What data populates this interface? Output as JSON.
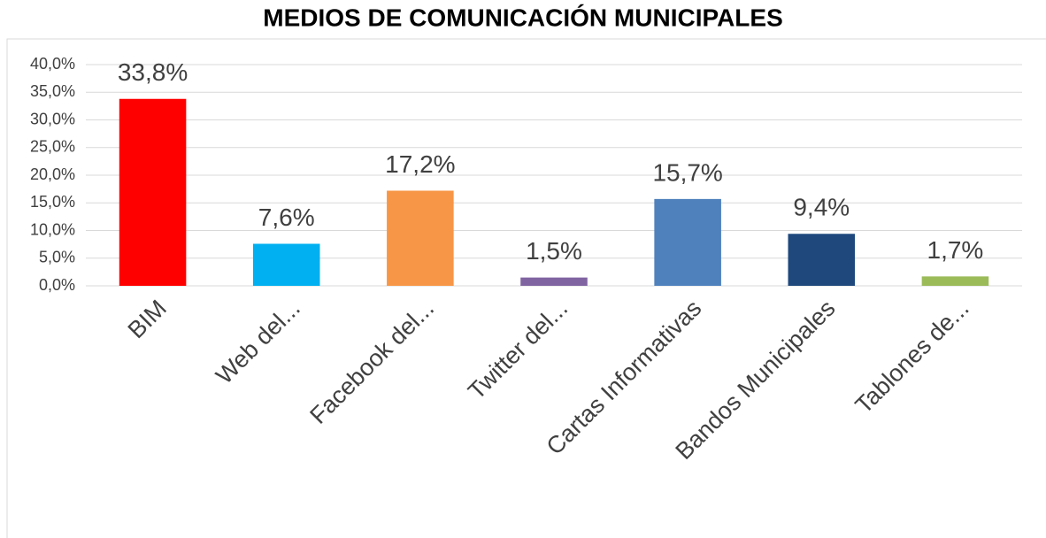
{
  "chart_data": {
    "type": "bar",
    "title": "MEDIOS DE COMUNICACIÓN MUNICIPALES",
    "categories": [
      "BIM",
      "Web del...",
      "Facebook del...",
      "Twitter del...",
      "Cartas Informativas",
      "Bandos Municipales",
      "Tablones de..."
    ],
    "values": [
      33.8,
      7.6,
      17.2,
      1.5,
      15.7,
      9.4,
      1.7
    ],
    "value_labels": [
      "33,8%",
      "7,6%",
      "17,2%",
      "1,5%",
      "15,7%",
      "9,4%",
      "1,7%"
    ],
    "colors": [
      "#ff0000",
      "#00b0f0",
      "#f79646",
      "#8064a2",
      "#4f81bd",
      "#1f497d",
      "#9bbb59"
    ],
    "ylim": [
      0,
      40
    ],
    "yticks": [
      {
        "value": 0,
        "label": "0,0%"
      },
      {
        "value": 5,
        "label": "5,0%"
      },
      {
        "value": 10,
        "label": "10,0%"
      },
      {
        "value": 15,
        "label": "15,0%"
      },
      {
        "value": 20,
        "label": "20,0%"
      },
      {
        "value": 25,
        "label": "25,0%"
      },
      {
        "value": 30,
        "label": "30,0%"
      },
      {
        "value": 35,
        "label": "35,0%"
      },
      {
        "value": 40,
        "label": "40,0%"
      }
    ],
    "grid": true
  }
}
